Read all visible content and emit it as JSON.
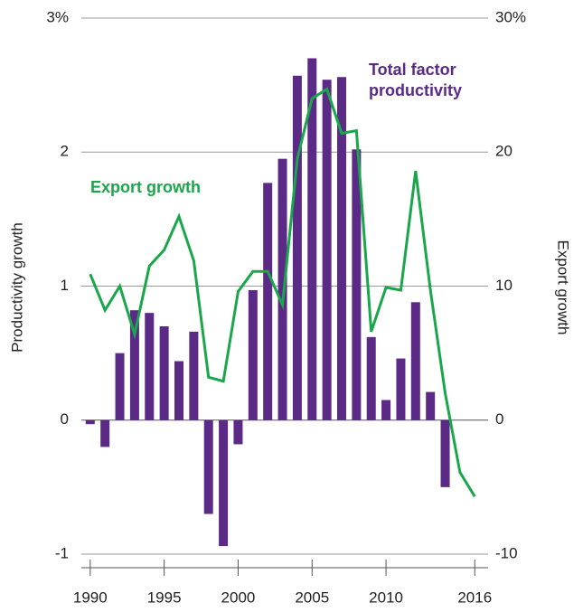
{
  "chart_data": {
    "type": "bar",
    "x": [
      1990,
      1991,
      1992,
      1993,
      1994,
      1995,
      1996,
      1997,
      1998,
      1999,
      2000,
      2001,
      2002,
      2003,
      2004,
      2005,
      2006,
      2007,
      2008,
      2009,
      2010,
      2011,
      2012,
      2013,
      2014,
      2015,
      2016
    ],
    "series": [
      {
        "name": "Total factor productivity",
        "type": "bar",
        "axis": "y",
        "color": "#5b2a86",
        "values": [
          -0.03,
          -0.2,
          0.5,
          0.82,
          0.8,
          0.7,
          0.44,
          0.66,
          -0.7,
          -0.94,
          -0.18,
          0.97,
          1.77,
          1.95,
          2.57,
          2.7,
          2.54,
          2.56,
          2.02,
          0.62,
          0.15,
          0.46,
          0.88,
          0.21,
          -0.5,
          null,
          null
        ]
      },
      {
        "name": "Export growth",
        "type": "line",
        "axis": "y2",
        "color": "#1aa64a",
        "values": [
          10.9,
          8.2,
          10.0,
          6.4,
          11.5,
          12.7,
          15.2,
          11.9,
          3.2,
          2.9,
          9.6,
          11.1,
          11.1,
          8.6,
          19.5,
          24.0,
          24.7,
          21.4,
          21.6,
          6.6,
          9.9,
          9.7,
          18.6,
          9.7,
          2.0,
          -3.9,
          -5.7
        ]
      }
    ],
    "y_label": "Productivity growth",
    "y2_label": "Export growth",
    "xlim": [
      1989.4,
      2016.9
    ],
    "xticks": [
      1990,
      1995,
      2000,
      2005,
      2010,
      2016
    ],
    "ylim": [
      -1,
      3
    ],
    "yticks": [
      -1,
      0,
      1,
      2,
      {
        "value": 3,
        "label": "3%"
      }
    ],
    "y2lim": [
      -10,
      30
    ],
    "y2ticks": [
      -10,
      0,
      10,
      20,
      {
        "value": 30,
        "label": "30%"
      }
    ],
    "grid": true
  }
}
